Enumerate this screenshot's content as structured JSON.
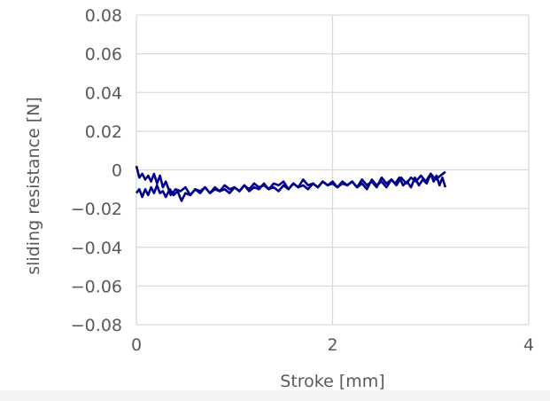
{
  "chart_data": {
    "type": "line",
    "title": "",
    "xlabel": "Stroke [mm]",
    "ylabel": "sliding resistance [N]",
    "xlim": [
      0,
      4
    ],
    "ylim": [
      -0.08,
      0.08
    ],
    "x_ticks": [
      0,
      2,
      4
    ],
    "y_ticks": [
      0.08,
      0.06,
      0.04,
      0.02,
      0,
      -0.02,
      -0.04,
      -0.06,
      -0.08
    ],
    "x_tick_labels": [
      "0",
      "2",
      "4"
    ],
    "y_tick_labels": [
      "0.08",
      "0.06",
      "0.04",
      "0.02",
      "0",
      "−0.02",
      "−0.04",
      "−0.06",
      "−0.08"
    ],
    "grid": true,
    "legend": "none",
    "line_color": "#00008b",
    "series": [
      {
        "x": [
          0.0,
          0.03,
          0.06,
          0.09,
          0.12,
          0.15,
          0.18,
          0.21,
          0.24,
          0.27,
          0.3,
          0.34,
          0.38,
          0.42,
          0.46,
          0.5,
          0.55,
          0.6,
          0.65,
          0.7,
          0.75,
          0.8,
          0.85,
          0.9,
          0.95,
          1.0,
          1.05,
          1.1,
          1.15,
          1.2,
          1.25,
          1.3,
          1.35,
          1.4,
          1.45,
          1.5,
          1.55,
          1.6,
          1.65,
          1.7,
          1.75,
          1.8,
          1.85,
          1.9,
          1.95,
          2.0,
          2.05,
          2.1,
          2.15,
          2.2,
          2.25,
          2.3,
          2.35,
          2.4,
          2.45,
          2.5,
          2.55,
          2.6,
          2.65,
          2.7,
          2.75,
          2.8,
          2.85,
          2.9,
          2.95,
          3.0,
          3.05,
          3.1,
          3.15
        ],
        "y": [
          -0.012,
          -0.01,
          -0.014,
          -0.01,
          -0.013,
          -0.009,
          -0.012,
          -0.008,
          -0.012,
          -0.011,
          -0.014,
          -0.01,
          -0.013,
          -0.011,
          -0.016,
          -0.012,
          -0.013,
          -0.01,
          -0.012,
          -0.009,
          -0.012,
          -0.009,
          -0.011,
          -0.01,
          -0.012,
          -0.009,
          -0.011,
          -0.008,
          -0.011,
          -0.009,
          -0.01,
          -0.007,
          -0.01,
          -0.009,
          -0.011,
          -0.008,
          -0.01,
          -0.007,
          -0.009,
          -0.008,
          -0.01,
          -0.007,
          -0.009,
          -0.006,
          -0.008,
          -0.007,
          -0.009,
          -0.006,
          -0.008,
          -0.006,
          -0.009,
          -0.005,
          -0.008,
          -0.006,
          -0.009,
          -0.004,
          -0.007,
          -0.005,
          -0.008,
          -0.004,
          -0.007,
          -0.004,
          -0.006,
          -0.003,
          -0.006,
          -0.002,
          -0.005,
          -0.003,
          -0.001
        ]
      },
      {
        "x": [
          3.15,
          3.12,
          3.09,
          3.06,
          3.03,
          3.0,
          2.96,
          2.92,
          2.88,
          2.84,
          2.8,
          2.76,
          2.72,
          2.68,
          2.64,
          2.6,
          2.55,
          2.5,
          2.45,
          2.4,
          2.35,
          2.3,
          2.25,
          2.2,
          2.15,
          2.1,
          2.05,
          2.0,
          1.95,
          1.9,
          1.85,
          1.8,
          1.75,
          1.7,
          1.65,
          1.6,
          1.55,
          1.5,
          1.45,
          1.4,
          1.35,
          1.3,
          1.25,
          1.2,
          1.15,
          1.1,
          1.05,
          1.0,
          0.95,
          0.9,
          0.85,
          0.8,
          0.75,
          0.7,
          0.65,
          0.6,
          0.55,
          0.5,
          0.45,
          0.4,
          0.35,
          0.3,
          0.27,
          0.24,
          0.21,
          0.18,
          0.15,
          0.12,
          0.09,
          0.06,
          0.03,
          0.0
        ],
        "y": [
          -0.009,
          -0.004,
          -0.008,
          -0.003,
          -0.006,
          -0.002,
          -0.007,
          -0.005,
          -0.008,
          -0.004,
          -0.009,
          -0.006,
          -0.008,
          -0.004,
          -0.007,
          -0.005,
          -0.009,
          -0.006,
          -0.008,
          -0.005,
          -0.01,
          -0.007,
          -0.009,
          -0.006,
          -0.008,
          -0.007,
          -0.009,
          -0.006,
          -0.008,
          -0.006,
          -0.009,
          -0.007,
          -0.008,
          -0.005,
          -0.009,
          -0.007,
          -0.01,
          -0.006,
          -0.008,
          -0.007,
          -0.01,
          -0.008,
          -0.009,
          -0.007,
          -0.01,
          -0.008,
          -0.011,
          -0.009,
          -0.01,
          -0.008,
          -0.011,
          -0.01,
          -0.012,
          -0.009,
          -0.011,
          -0.01,
          -0.013,
          -0.009,
          -0.011,
          -0.01,
          -0.013,
          -0.006,
          -0.009,
          -0.003,
          -0.007,
          -0.002,
          -0.006,
          -0.003,
          -0.005,
          -0.002,
          -0.004,
          0.002
        ]
      }
    ]
  }
}
